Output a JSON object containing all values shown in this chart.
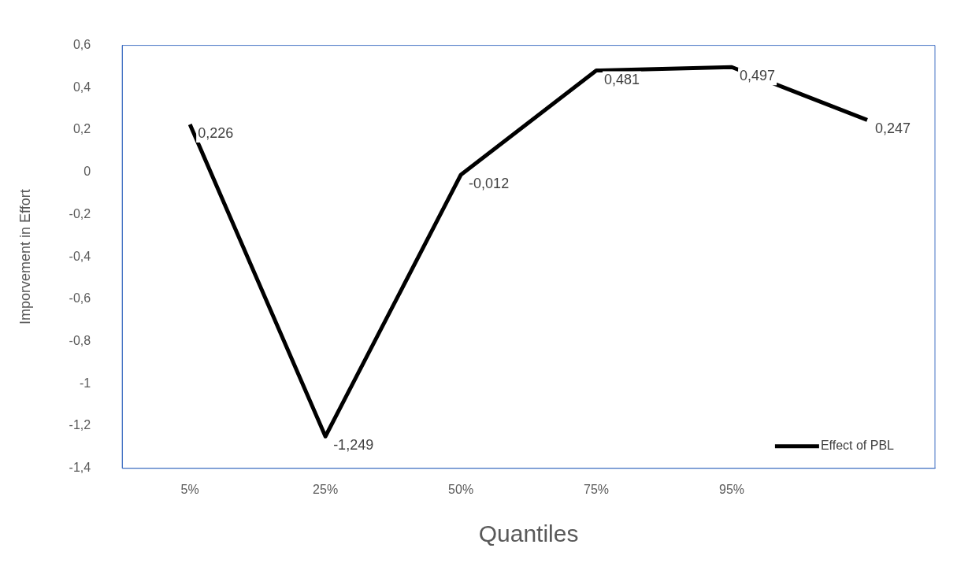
{
  "chart_data": {
    "type": "line",
    "xlabel": "Quantiles",
    "ylabel": "Imporvement in Effort",
    "categories": [
      "5%",
      "25%",
      "50%",
      "75%",
      "95%",
      null
    ],
    "series": [
      {
        "name": "Effect of PBL",
        "color": "#000000",
        "values": [
          0.226,
          -1.249,
          -0.012,
          0.481,
          0.497,
          0.247
        ],
        "value_labels": [
          "0,226",
          "-1,249",
          "-0,012",
          "0,481",
          "0,497",
          "0,247"
        ]
      }
    ],
    "ylim": [
      -1.4,
      0.6
    ],
    "yticks": [
      {
        "value": -1.4,
        "label": "-1,4"
      },
      {
        "value": -1.2,
        "label": "-1,2"
      },
      {
        "value": -1,
        "label": "-1"
      },
      {
        "value": -0.8,
        "label": "-0,8"
      },
      {
        "value": -0.6,
        "label": "-0,6"
      },
      {
        "value": -0.4,
        "label": "-0,4"
      },
      {
        "value": -0.2,
        "label": "-0,2"
      },
      {
        "value": 0,
        "label": "0"
      },
      {
        "value": 0.2,
        "label": "0,2"
      },
      {
        "value": 0.4,
        "label": "0,4"
      },
      {
        "value": 0.6,
        "label": "0,6"
      }
    ],
    "grid": false,
    "legend": "bottom right",
    "marker": "none",
    "line_style": "solid"
  }
}
